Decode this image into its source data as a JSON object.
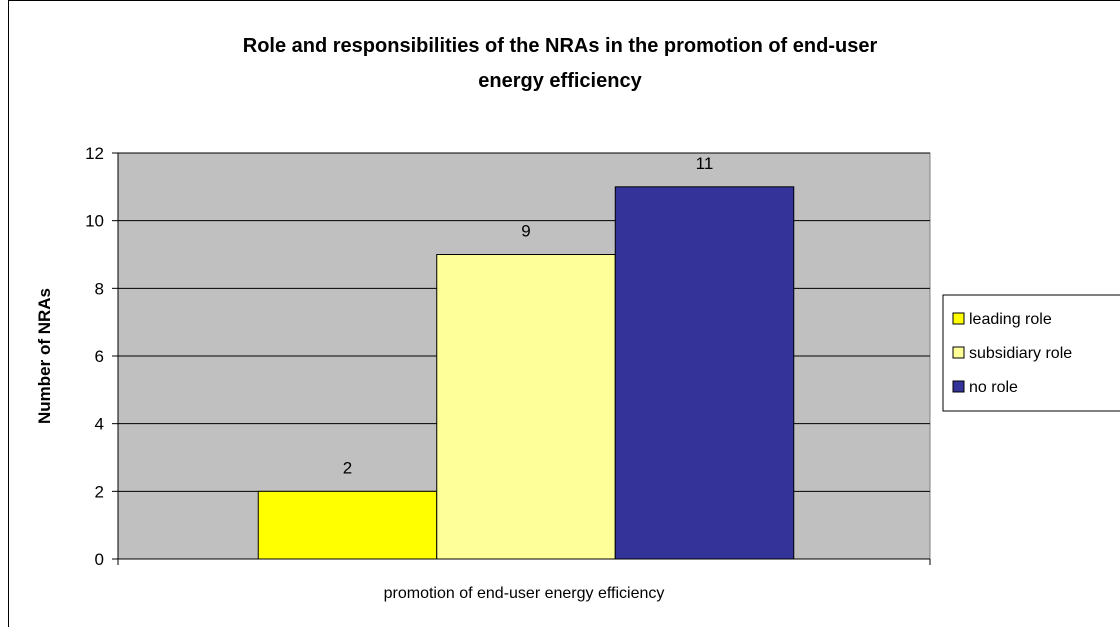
{
  "chart_data": {
    "type": "bar",
    "title": "Role and responsibilities of the NRAs in the promotion of end-user energy efficiency",
    "title_lines": [
      "Role and responsibilities of the NRAs in the promotion of end-user",
      "energy efficiency"
    ],
    "xlabel": "",
    "ylabel": "Number of NRAs",
    "categories": [
      "promotion of end-user energy efficiency"
    ],
    "series": [
      {
        "name": "leading role",
        "values": [
          2
        ],
        "color": "#ffff00"
      },
      {
        "name": "subsidiary role",
        "values": [
          9
        ],
        "color": "#ffff99"
      },
      {
        "name": "no role",
        "values": [
          11
        ],
        "color": "#333399"
      }
    ],
    "data_labels": [
      "2",
      "9",
      "11"
    ],
    "ylim": [
      0,
      12
    ],
    "yticks": [
      0,
      2,
      4,
      6,
      8,
      10,
      12
    ],
    "grid": true,
    "legend_position": "right",
    "plot_background": "#c0c0c0"
  }
}
